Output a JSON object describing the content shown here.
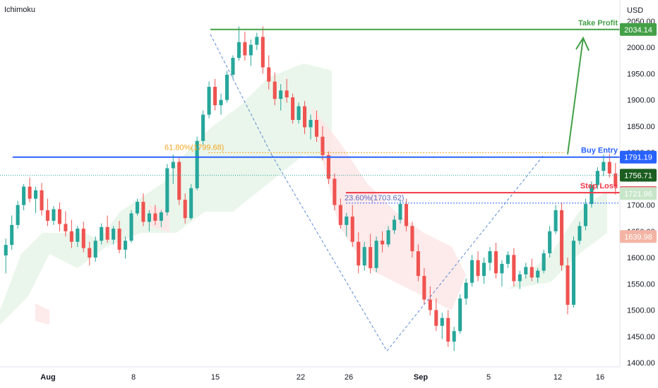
{
  "indicator": "Ichimoku",
  "currency": "USD",
  "chart_data": {
    "type": "candlestick",
    "ylim": [
      1400,
      2050
    ],
    "y_ticks": [
      1400,
      1450,
      1500,
      1550,
      1600,
      1650,
      1700,
      1750,
      1800,
      1850,
      1900,
      1950,
      2000,
      2050
    ],
    "x_labels": [
      "Aug",
      "8",
      "15",
      "22",
      "26",
      "Sep",
      "5",
      "12",
      "16"
    ],
    "levels": [
      {
        "name": "Take Profit",
        "value": 2034.14,
        "color": "#43a047"
      },
      {
        "name": "Buy Entry",
        "value": 1791.19,
        "color": "#2962ff"
      },
      {
        "name": "Stop Loss",
        "value": 1723.42,
        "color": "#f23645"
      }
    ],
    "price_badges": [
      {
        "value": "2034.14",
        "price": 2034.14,
        "color": "#43a047"
      },
      {
        "value": "1791.19",
        "price": 1791.19,
        "color": "#2962ff"
      },
      {
        "value": "1756.71",
        "price": 1756.71,
        "color": "#1b5e20"
      },
      {
        "value": "1723.42",
        "price": 1723.42,
        "color": "#f23645"
      },
      {
        "value": "1721.96",
        "price": 1721.96,
        "color": "#c8e6c9",
        "text_color": "#131722"
      },
      {
        "value": "1639.98",
        "price": 1639.98,
        "color": "#f4b4a4",
        "text_color": "#131722"
      }
    ],
    "fib_labels": [
      {
        "text": "61.80%(1799.68)",
        "price": 1799.68,
        "color": "#f5a623"
      },
      {
        "text": "23.60%(1703.62)",
        "price": 1703.62,
        "color": "#5c6bc0"
      }
    ],
    "candles": [
      [
        1604,
        1636,
        1570,
        1624
      ],
      [
        1624,
        1680,
        1615,
        1662
      ],
      [
        1662,
        1708,
        1655,
        1700
      ],
      [
        1700,
        1740,
        1690,
        1735
      ],
      [
        1735,
        1752,
        1705,
        1712
      ],
      [
        1712,
        1735,
        1685,
        1728
      ],
      [
        1728,
        1742,
        1680,
        1690
      ],
      [
        1690,
        1712,
        1660,
        1670
      ],
      [
        1670,
        1698,
        1662,
        1692
      ],
      [
        1692,
        1705,
        1650,
        1664
      ],
      [
        1664,
        1688,
        1640,
        1650
      ],
      [
        1650,
        1672,
        1618,
        1630
      ],
      [
        1630,
        1660,
        1620,
        1655
      ],
      [
        1655,
        1668,
        1610,
        1618
      ],
      [
        1618,
        1630,
        1585,
        1600
      ],
      [
        1600,
        1640,
        1592,
        1632
      ],
      [
        1632,
        1665,
        1625,
        1658
      ],
      [
        1658,
        1680,
        1628,
        1634
      ],
      [
        1634,
        1660,
        1625,
        1655
      ],
      [
        1655,
        1670,
        1608,
        1615
      ],
      [
        1615,
        1640,
        1598,
        1632
      ],
      [
        1632,
        1690,
        1628,
        1684
      ],
      [
        1684,
        1712,
        1680,
        1706
      ],
      [
        1706,
        1722,
        1660,
        1668
      ],
      [
        1668,
        1690,
        1650,
        1684
      ],
      [
        1684,
        1700,
        1662,
        1670
      ],
      [
        1670,
        1690,
        1658,
        1686
      ],
      [
        1686,
        1778,
        1680,
        1770
      ],
      [
        1770,
        1796,
        1740,
        1782
      ],
      [
        1782,
        1790,
        1700,
        1710
      ],
      [
        1710,
        1722,
        1665,
        1675
      ],
      [
        1675,
        1740,
        1672,
        1732
      ],
      [
        1732,
        1830,
        1728,
        1822
      ],
      [
        1822,
        1880,
        1815,
        1872
      ],
      [
        1872,
        1935,
        1865,
        1925
      ],
      [
        1925,
        1940,
        1880,
        1890
      ],
      [
        1890,
        1912,
        1872,
        1900
      ],
      [
        1900,
        1955,
        1895,
        1948
      ],
      [
        1948,
        1985,
        1940,
        1980
      ],
      [
        1980,
        2040,
        1975,
        2010
      ],
      [
        2010,
        2030,
        1975,
        1985
      ],
      [
        1985,
        2015,
        1965,
        2005
      ],
      [
        2005,
        2028,
        1995,
        2020
      ],
      [
        2020,
        2040,
        1950,
        1962
      ],
      [
        1962,
        1985,
        1920,
        1935
      ],
      [
        1935,
        1952,
        1890,
        1902
      ],
      [
        1902,
        1930,
        1880,
        1918
      ],
      [
        1918,
        1940,
        1895,
        1905
      ],
      [
        1905,
        1912,
        1855,
        1862
      ],
      [
        1862,
        1895,
        1855,
        1888
      ],
      [
        1888,
        1898,
        1835,
        1848
      ],
      [
        1848,
        1872,
        1825,
        1862
      ],
      [
        1862,
        1880,
        1820,
        1830
      ],
      [
        1830,
        1850,
        1785,
        1795
      ],
      [
        1795,
        1802,
        1740,
        1750
      ],
      [
        1750,
        1760,
        1690,
        1700
      ],
      [
        1700,
        1712,
        1655,
        1662
      ],
      [
        1662,
        1685,
        1640,
        1678
      ],
      [
        1678,
        1700,
        1620,
        1630
      ],
      [
        1630,
        1648,
        1570,
        1585
      ],
      [
        1585,
        1630,
        1575,
        1620
      ],
      [
        1620,
        1645,
        1570,
        1580
      ],
      [
        1580,
        1640,
        1572,
        1632
      ],
      [
        1632,
        1650,
        1610,
        1625
      ],
      [
        1625,
        1660,
        1620,
        1652
      ],
      [
        1652,
        1680,
        1645,
        1672
      ],
      [
        1672,
        1710,
        1665,
        1702
      ],
      [
        1702,
        1712,
        1650,
        1660
      ],
      [
        1660,
        1668,
        1600,
        1612
      ],
      [
        1612,
        1625,
        1555,
        1565
      ],
      [
        1565,
        1580,
        1510,
        1520
      ],
      [
        1520,
        1545,
        1490,
        1500
      ],
      [
        1500,
        1522,
        1460,
        1470
      ],
      [
        1470,
        1495,
        1445,
        1485
      ],
      [
        1485,
        1500,
        1430,
        1440
      ],
      [
        1440,
        1468,
        1422,
        1460
      ],
      [
        1460,
        1530,
        1455,
        1522
      ],
      [
        1522,
        1560,
        1510,
        1552
      ],
      [
        1552,
        1605,
        1545,
        1595
      ],
      [
        1595,
        1612,
        1555,
        1565
      ],
      [
        1565,
        1600,
        1550,
        1590
      ],
      [
        1590,
        1620,
        1575,
        1612
      ],
      [
        1612,
        1628,
        1560,
        1570
      ],
      [
        1570,
        1595,
        1545,
        1588
      ],
      [
        1588,
        1612,
        1580,
        1605
      ],
      [
        1605,
        1618,
        1545,
        1555
      ],
      [
        1555,
        1575,
        1540,
        1568
      ],
      [
        1568,
        1590,
        1560,
        1582
      ],
      [
        1582,
        1598,
        1555,
        1562
      ],
      [
        1562,
        1580,
        1552,
        1575
      ],
      [
        1575,
        1615,
        1570,
        1608
      ],
      [
        1608,
        1660,
        1600,
        1650
      ],
      [
        1650,
        1700,
        1645,
        1690
      ],
      [
        1690,
        1705,
        1575,
        1585
      ],
      [
        1585,
        1600,
        1492,
        1510
      ],
      [
        1510,
        1640,
        1505,
        1632
      ],
      [
        1632,
        1668,
        1625,
        1660
      ],
      [
        1660,
        1712,
        1652,
        1702
      ],
      [
        1702,
        1745,
        1695,
        1738
      ],
      [
        1738,
        1772,
        1730,
        1765
      ],
      [
        1765,
        1796,
        1755,
        1782
      ],
      [
        1782,
        1798,
        1752,
        1760
      ],
      [
        1760,
        1780,
        1720,
        1735
      ]
    ]
  }
}
